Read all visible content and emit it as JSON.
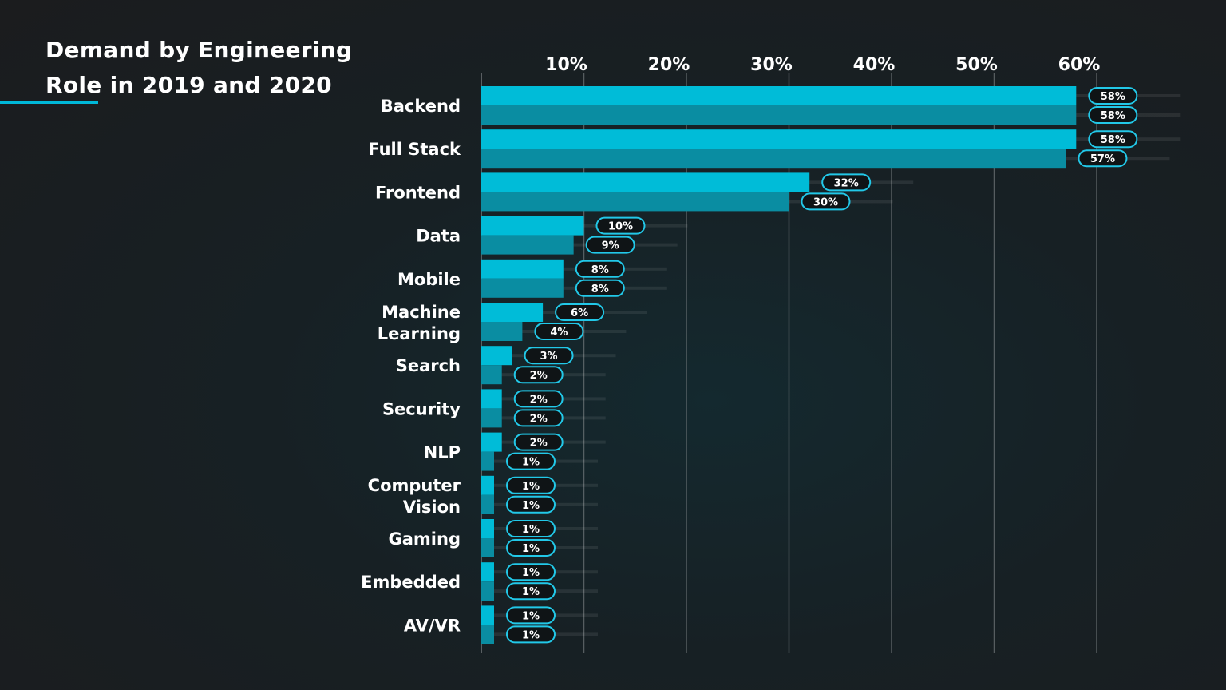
{
  "title_line1": "Demand by Engineering",
  "title_line2": "Role in 2019 and 2020",
  "colors": {
    "accent": "#00b8d9",
    "series_2019": "#00bcd8",
    "series_2020": "#0a8da2",
    "gridline": "#8a8f92",
    "label_border": "#22c8e8",
    "label_fill": "#0f1416"
  },
  "chart_data": {
    "type": "bar",
    "orientation": "horizontal",
    "title": "Demand by Engineering Role in 2019 and 2020",
    "xlim": [
      0,
      65
    ],
    "x_ticks": [
      10,
      20,
      30,
      40,
      50,
      60
    ],
    "x_tick_labels": [
      "10%",
      "20%",
      "30%",
      "40%",
      "50%",
      "60%"
    ],
    "categories": [
      [
        "Backend"
      ],
      [
        "Full Stack"
      ],
      [
        "Frontend"
      ],
      [
        "Data"
      ],
      [
        "Mobile"
      ],
      [
        "Machine",
        "Learning"
      ],
      [
        "Search"
      ],
      [
        "Security"
      ],
      [
        "NLP"
      ],
      [
        "Computer",
        "Vision"
      ],
      [
        "Gaming"
      ],
      [
        "Embedded"
      ],
      [
        "AV/VR"
      ]
    ],
    "series": [
      {
        "name": "2019",
        "values": [
          58,
          58,
          32,
          10,
          8,
          6,
          3,
          2,
          2,
          1,
          1,
          1,
          1
        ],
        "labels": [
          "58%",
          "58%",
          "32%",
          "10%",
          "8%",
          "6%",
          "3%",
          "2%",
          "2%",
          "1%",
          "1%",
          "1%",
          "1%"
        ]
      },
      {
        "name": "2020",
        "values": [
          58,
          57,
          30,
          9,
          8,
          4,
          2,
          2,
          1,
          1,
          1,
          1,
          1
        ],
        "labels": [
          "58%",
          "57%",
          "30%",
          "9%",
          "8%",
          "4%",
          "2%",
          "2%",
          "1%",
          "1%",
          "1%",
          "1%",
          "1%"
        ]
      }
    ]
  }
}
